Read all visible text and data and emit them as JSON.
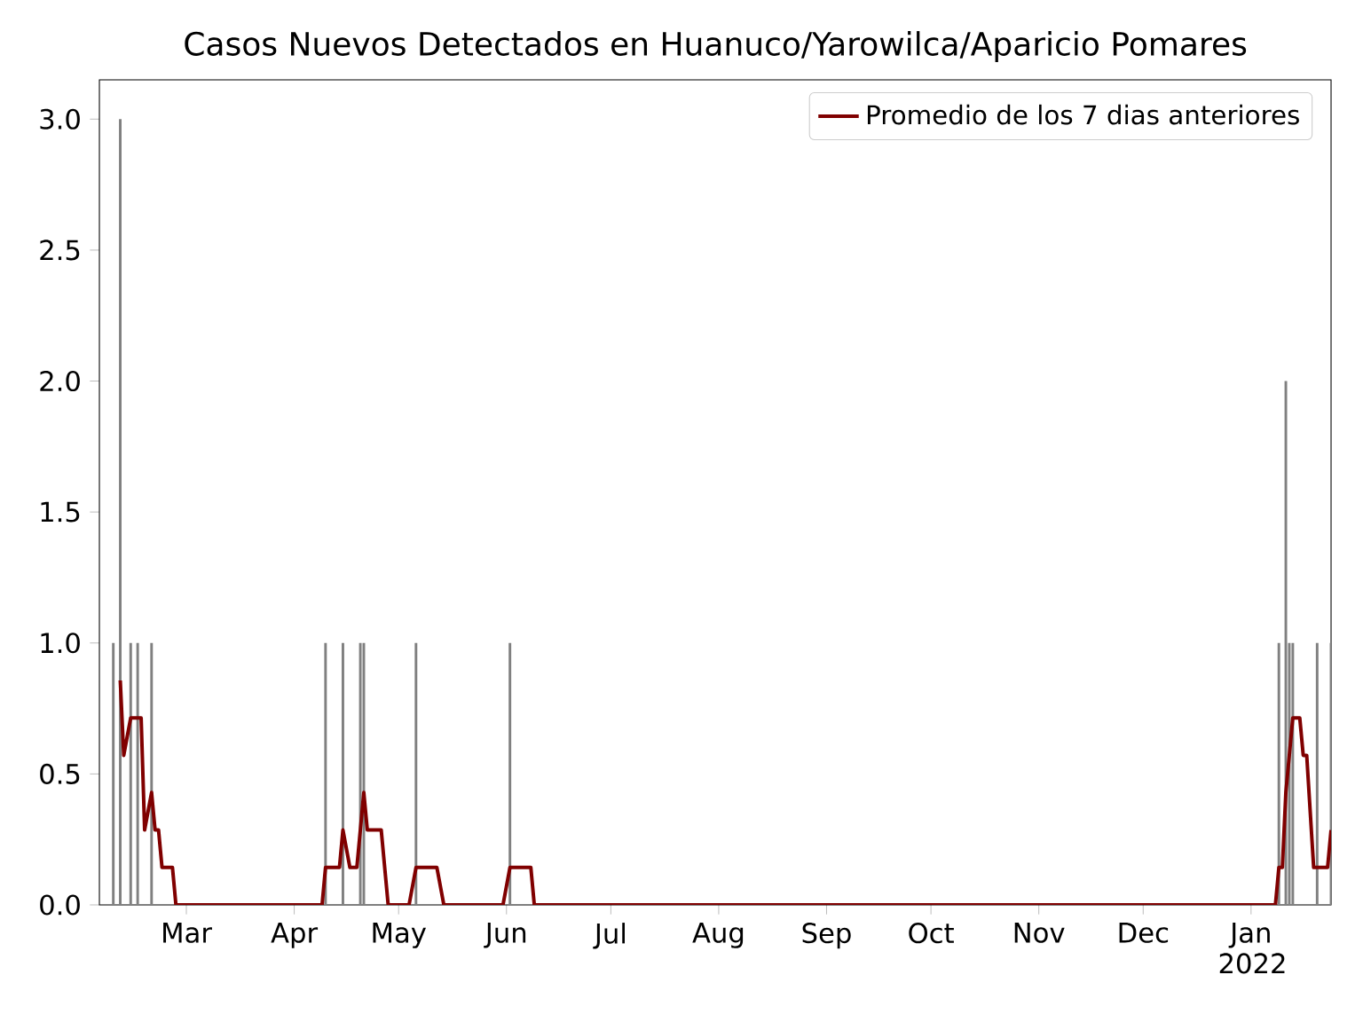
{
  "chart_data": {
    "type": "bar",
    "title": "Casos Nuevos Detectados en Huanuco/Yarowilca/Aparicio Pomares",
    "xlim": [
      "2021-02-04",
      "2022-01-24"
    ],
    "xticks": [
      {
        "value": "2021-03-01",
        "label": "Mar"
      },
      {
        "value": "2021-04-01",
        "label": "Apr"
      },
      {
        "value": "2021-05-01",
        "label": "May"
      },
      {
        "value": "2021-06-01",
        "label": "Jun"
      },
      {
        "value": "2021-07-01",
        "label": "Jul"
      },
      {
        "value": "2021-08-01",
        "label": "Aug"
      },
      {
        "value": "2021-09-01",
        "label": "Sep"
      },
      {
        "value": "2021-10-01",
        "label": "Oct"
      },
      {
        "value": "2021-11-01",
        "label": "Nov"
      },
      {
        "value": "2021-12-01",
        "label": "Dec"
      },
      {
        "value": "2022-01-01",
        "label": "Jan 2022"
      }
    ],
    "ylim": [
      0,
      3.15
    ],
    "yticks": [
      {
        "value": 0,
        "label": "0.0"
      },
      {
        "value": 0.5,
        "label": "0.5"
      },
      {
        "value": 1,
        "label": "1.0"
      },
      {
        "value": 1.5,
        "label": "1.5"
      },
      {
        "value": 2,
        "label": "2.0"
      },
      {
        "value": 2.5,
        "label": "2.5"
      },
      {
        "value": 3,
        "label": "3.0"
      }
    ],
    "legend": "top right",
    "series": [
      {
        "color": "#808080",
        "x": [
          "2021-02-08",
          "2021-02-10",
          "2021-02-13",
          "2021-02-15",
          "2021-02-19",
          "2021-04-10",
          "2021-04-15",
          "2021-04-20",
          "2021-04-21",
          "2021-05-06",
          "2021-06-02",
          "2022-01-09",
          "2022-01-11",
          "2022-01-12",
          "2022-01-13",
          "2022-01-20",
          "2022-01-24"
        ],
        "values": [
          1,
          3,
          1,
          1,
          1,
          1,
          1,
          1,
          1,
          1,
          1,
          1,
          2,
          1,
          1,
          1,
          1
        ]
      },
      {
        "type": "line",
        "name": "Promedio de los 7 dias anteriores",
        "color": "#800000",
        "x": [
          "2021-02-10",
          "2021-02-11",
          "2021-02-13",
          "2021-02-16",
          "2021-02-17",
          "2021-02-19",
          "2021-02-20",
          "2021-02-21",
          "2021-02-22",
          "2021-02-25",
          "2021-02-26",
          "2021-04-09",
          "2021-04-10",
          "2021-04-14",
          "2021-04-15",
          "2021-04-17",
          "2021-04-19",
          "2021-04-21",
          "2021-04-22",
          "2021-04-26",
          "2021-04-28",
          "2021-05-04",
          "2021-05-06",
          "2021-05-12",
          "2021-05-14",
          "2021-05-31",
          "2021-06-02",
          "2021-06-08",
          "2021-06-09",
          "2022-01-08",
          "2022-01-09",
          "2022-01-10",
          "2022-01-11",
          "2022-01-12",
          "2022-01-13",
          "2022-01-15",
          "2022-01-16",
          "2022-01-17",
          "2022-01-19",
          "2022-01-23",
          "2022-01-24"
        ],
        "values": [
          0.857,
          0.571,
          0.714,
          0.714,
          0.286,
          0.429,
          0.286,
          0.286,
          0.143,
          0.143,
          0,
          0,
          0.143,
          0.143,
          0.286,
          0.143,
          0.143,
          0.429,
          0.286,
          0.286,
          0,
          0,
          0.143,
          0.143,
          0,
          0,
          0.143,
          0.143,
          0,
          0,
          0.143,
          0.143,
          0.429,
          0.571,
          0.714,
          0.714,
          0.571,
          0.571,
          0.143,
          0.143,
          0.286
        ]
      }
    ]
  }
}
